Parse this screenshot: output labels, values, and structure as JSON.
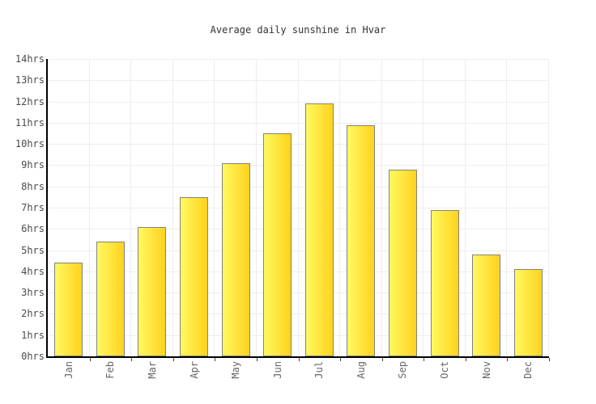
{
  "page": {
    "background": "#ffffff"
  },
  "chart_data": {
    "type": "bar",
    "title": "Average daily sunshine in Hvar",
    "categories": [
      "Jan",
      "Feb",
      "Mar",
      "Apr",
      "May",
      "Jun",
      "Jul",
      "Aug",
      "Sep",
      "Oct",
      "Nov",
      "Dec"
    ],
    "values": [
      4.4,
      5.4,
      6.1,
      7.5,
      9.1,
      10.5,
      11.9,
      10.9,
      8.8,
      6.9,
      4.8,
      4.1
    ],
    "unit": "hrs",
    "xlabel": "",
    "ylabel": "",
    "ylim": [
      0,
      14
    ],
    "ytick_step": 1,
    "ytick_labels": [
      "0hrs",
      "1hrs",
      "2hrs",
      "3hrs",
      "4hrs",
      "5hrs",
      "6hrs",
      "7hrs",
      "8hrs",
      "9hrs",
      "10hrs",
      "11hrs",
      "12hrs",
      "13hrs",
      "14hrs"
    ],
    "grid": true,
    "legend": "none",
    "colors": {
      "bar_gradient_left": "#FFF960",
      "bar_gradient_right": "#FFD21E",
      "bar_border": "#828282",
      "gridline": "#EDEDED",
      "axis": "#000000",
      "axis_tick": "#444444",
      "title_text": "#333333",
      "ytick_text": "#4A4A4A",
      "xtick_text": "#666666"
    }
  }
}
